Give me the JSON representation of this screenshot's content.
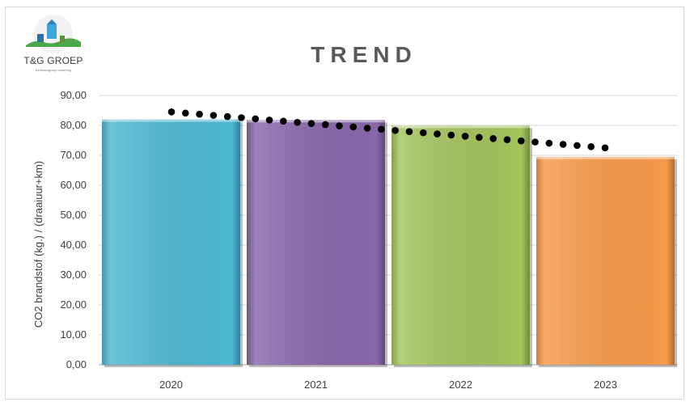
{
  "logo": {
    "name": "T&G GROEP",
    "tagline": "tuinbouwgroep onderling"
  },
  "colors": {
    "bars": [
      "#4db8d2",
      "#8867aa",
      "#a3c35c",
      "#f79a4a"
    ],
    "trend": "#000000",
    "grid": "#d9d9d9"
  },
  "chart_data": {
    "type": "bar",
    "title": "TREND",
    "xlabel": "",
    "ylabel": "CO2 brandstof  (kg.) / (draaiuur+km)",
    "categories": [
      "2020",
      "2021",
      "2022",
      "2023"
    ],
    "values": [
      82.0,
      81.8,
      79.9,
      69.5
    ],
    "ylim": [
      0,
      90
    ],
    "yticks": [
      "0,00",
      "10,00",
      "20,00",
      "30,00",
      "40,00",
      "50,00",
      "60,00",
      "70,00",
      "80,00",
      "90,00"
    ],
    "grid": true,
    "trendline": {
      "style": "dotted",
      "start": 84.5,
      "end": 72.5
    }
  }
}
